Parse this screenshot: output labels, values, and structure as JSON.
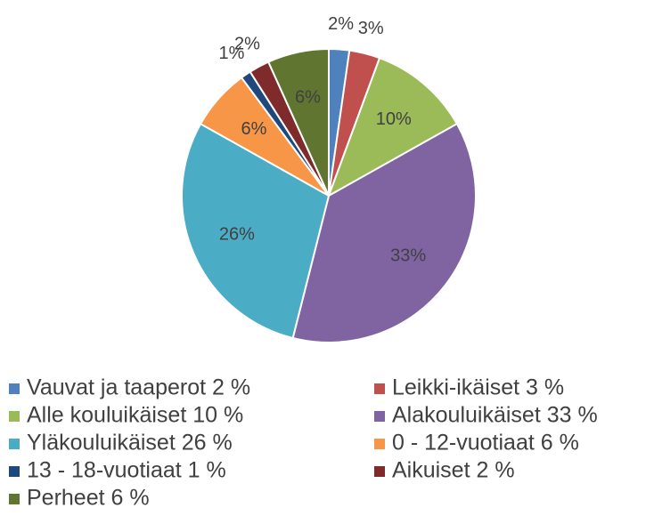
{
  "chart_data": {
    "type": "pie",
    "categories": [
      "Vauvat ja taaperot 2 %",
      "Leikki-ikäiset 3 %",
      "Alle kouluikäiset 10 %",
      "Alakouluikäiset 33 %",
      "Yläkouluikäiset 26 %",
      "0 - 12-vuotiaat 6 %",
      "13 - 18-vuotiaat 1 %",
      "Aikuiset 2 %",
      "Perheet 6 %"
    ],
    "values": [
      2,
      3,
      10,
      33,
      26,
      6,
      1,
      2,
      6
    ],
    "value_labels": [
      "2%",
      "3%",
      "10%",
      "33%",
      "26%",
      "6%",
      "1%",
      "2%",
      "6%"
    ],
    "colors": [
      "#4f81bd",
      "#c0504d",
      "#9bbb59",
      "#8064a2",
      "#4bacc6",
      "#f79646",
      "#1f497d",
      "#7f2b2b",
      "#5f7530"
    ],
    "legend": "bottom"
  }
}
